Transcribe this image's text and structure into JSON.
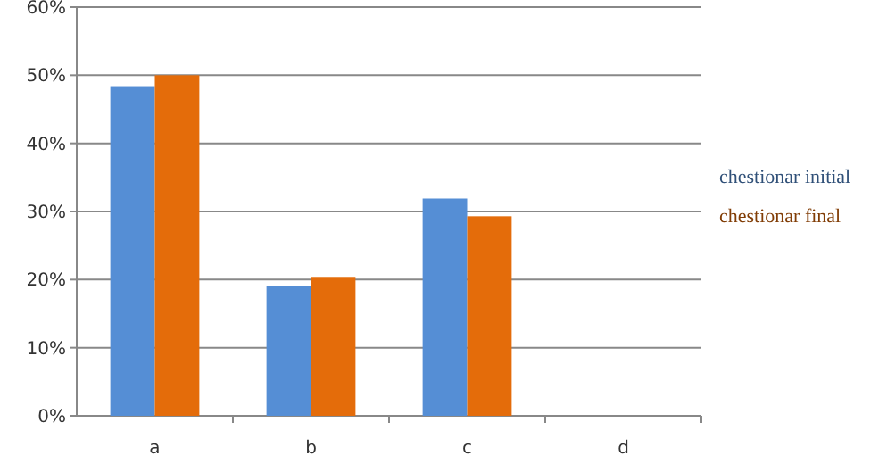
{
  "chart_data": {
    "type": "bar",
    "categories": [
      "a",
      "b",
      "c",
      "d"
    ],
    "series": [
      {
        "name": "chestionar initial",
        "color": "#558ed5",
        "values": [
          48.4,
          19.1,
          31.9,
          null
        ]
      },
      {
        "name": "chestionar final",
        "color": "#e46c0a",
        "values": [
          50,
          20.4,
          29.3,
          null
        ]
      }
    ],
    "ylim": [
      0,
      60
    ],
    "yticks": [
      {
        "value": 0,
        "label": "0%"
      },
      {
        "value": 10,
        "label": "10%"
      },
      {
        "value": 20,
        "label": "20%"
      },
      {
        "value": 30,
        "label": "30%"
      },
      {
        "value": 40,
        "label": "40%"
      },
      {
        "value": 50,
        "label": "50%"
      },
      {
        "value": 60,
        "label": "60%"
      }
    ],
    "grid": "y",
    "legend": "right"
  }
}
